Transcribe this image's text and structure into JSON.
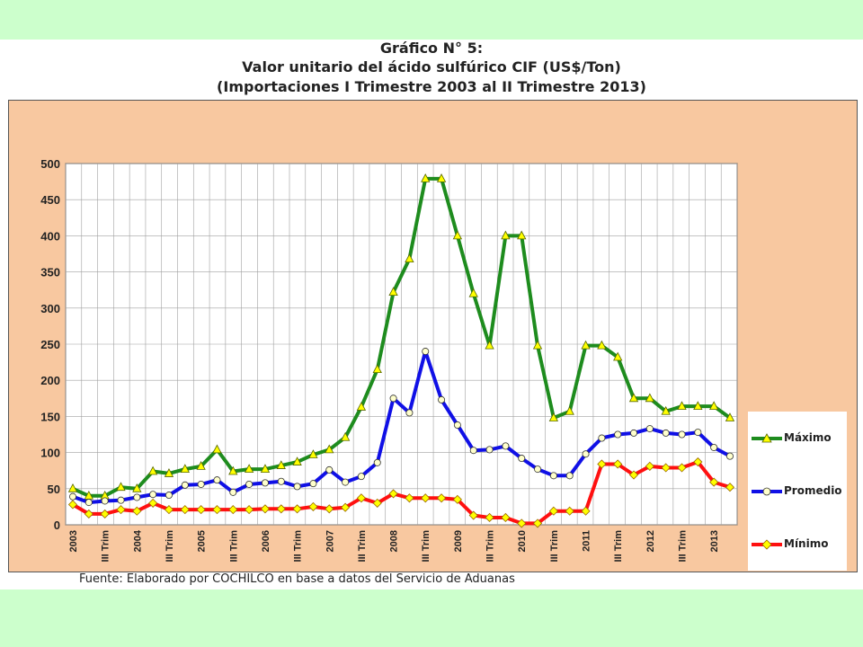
{
  "titles": {
    "line1": "Gráfico N° 5:",
    "line2": "Valor unitario del ácido sulfúrico CIF (US$/Ton)",
    "line3": "(Importaciones I Trimestre 2003 al II Trimestre 2013)"
  },
  "source": "Fuente: Elaborado por COCHILCO en base a datos del Servicio de Aduanas",
  "colors": {
    "outer_background": "#ccffcc",
    "plot_frame": "#f8c8a0",
    "maximo": "#1e8c1e",
    "promedio": "#1010e6",
    "minimo": "#ff1010"
  },
  "chart_data": {
    "type": "line",
    "title": "Valor unitario del ácido sulfúrico CIF (US$/Ton)",
    "xlabel": "",
    "ylabel": "",
    "ylim": [
      0,
      500
    ],
    "yticks": [
      0,
      50,
      100,
      150,
      200,
      250,
      300,
      350,
      400,
      450,
      500
    ],
    "grid": true,
    "legend_position": "right",
    "x_tick_labels": [
      "2003",
      "III Trim",
      "2004",
      "III Trim",
      "2005",
      "III Trim",
      "2006",
      "III Trim",
      "2007",
      "III Trim",
      "2008",
      "III Trim",
      "2009",
      "III Trim",
      "2010",
      "III Trim",
      "2011",
      "III Trim",
      "2012",
      "III Trim",
      "2013"
    ],
    "series": [
      {
        "name": "Máximo",
        "marker": "triangle",
        "values": [
          50,
          40,
          40,
          52,
          50,
          74,
          71,
          77,
          81,
          104,
          74,
          77,
          77,
          82,
          87,
          97,
          104,
          121,
          163,
          215,
          322,
          368,
          479,
          479,
          400,
          320,
          248,
          400,
          400,
          248,
          148,
          157,
          248,
          248,
          232,
          175,
          175,
          157,
          164,
          164,
          164,
          148
        ]
      },
      {
        "name": "Promedio",
        "marker": "circle",
        "values": [
          39,
          31,
          33,
          34,
          38,
          42,
          41,
          55,
          56,
          62,
          45,
          56,
          58,
          60,
          53,
          57,
          76,
          59,
          67,
          86,
          175,
          155,
          240,
          173,
          138,
          103,
          104,
          109,
          92,
          77,
          68,
          68,
          98,
          120,
          125,
          127,
          133,
          127,
          125,
          128,
          107,
          95
        ]
      },
      {
        "name": "Mínimo",
        "marker": "diamond",
        "values": [
          28,
          15,
          15,
          21,
          19,
          30,
          21,
          21,
          21,
          21,
          21,
          21,
          22,
          22,
          22,
          25,
          22,
          24,
          37,
          30,
          43,
          37,
          37,
          37,
          35,
          13,
          10,
          10,
          2,
          2,
          19,
          19,
          19,
          84,
          84,
          69,
          81,
          79,
          79,
          87,
          59,
          52
        ]
      }
    ]
  }
}
